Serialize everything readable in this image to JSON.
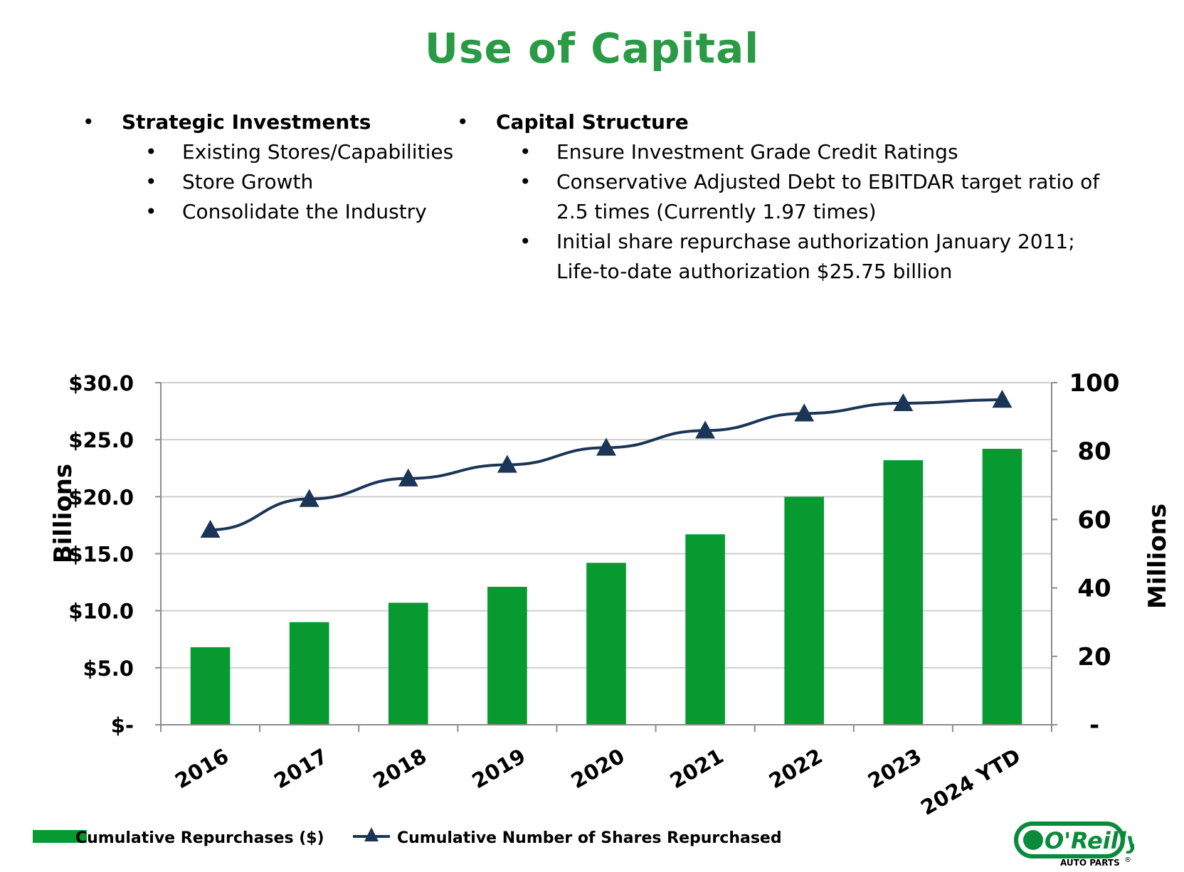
{
  "title": "Use of Capital",
  "bullet_glyph": "•",
  "left_column": {
    "heading": "Strategic Investments",
    "items": [
      "Existing Stores/Capabilities",
      "Store Growth",
      "Consolidate the Industry"
    ]
  },
  "right_column": {
    "heading": "Capital Structure",
    "items": [
      [
        "Ensure Investment Grade Credit Ratings"
      ],
      [
        "Conservative Adjusted Debt to EBITDAR target ratio of",
        "2.5 times (Currently 1.97 times)"
      ],
      [
        "Initial share repurchase authorization January 2011;",
        "Life-to-date authorization $25.75 billion"
      ]
    ]
  },
  "chart_data": {
    "type": "bar",
    "categories": [
      "2016",
      "2017",
      "2018",
      "2019",
      "2020",
      "2021",
      "2022",
      "2023",
      "2024 YTD"
    ],
    "series": [
      {
        "name": "Cumulative Repurchases ($)",
        "type": "bar",
        "axis": "left",
        "values": [
          6.8,
          9.0,
          10.7,
          12.1,
          14.2,
          16.7,
          20.0,
          23.2,
          24.2
        ]
      },
      {
        "name": "Cumulative Number of Shares Repurchased",
        "type": "line",
        "marker": "triangle",
        "axis": "right",
        "values": [
          57,
          66,
          72,
          76,
          81,
          86,
          91,
          94,
          95
        ]
      }
    ],
    "ylabel": "Billions",
    "y2label": "Millions",
    "ylim": [
      0,
      30
    ],
    "y2lim": [
      0,
      100
    ],
    "yticks": [
      "$-",
      "$5.0",
      "$10.0",
      "$15.0",
      "$20.0",
      "$25.0",
      "$30.0"
    ],
    "y2ticks": [
      "-",
      "20",
      "40",
      "60",
      "80",
      "100"
    ],
    "grid": true,
    "legend_position": "bottom-left",
    "colors": {
      "bar": "#069a31",
      "line": "#1b3556",
      "grid": "#cfcfcf"
    }
  },
  "logo": {
    "brand": "O'Reilly",
    "sub": "AUTO PARTS",
    "mark": "®"
  }
}
